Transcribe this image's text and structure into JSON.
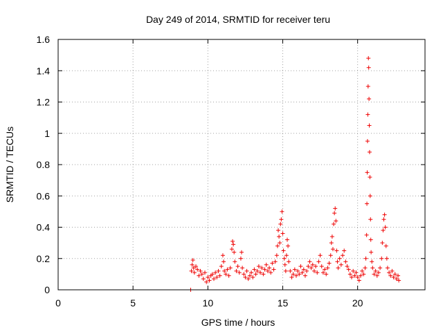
{
  "chart_data": {
    "type": "scatter",
    "title": "Day 249 of 2014, SRMTID for receiver teru",
    "xlabel": "GPS time / hours",
    "ylabel": "SRMTID / TECUs",
    "xlim": [
      0,
      24.5
    ],
    "ylim": [
      0,
      1.6
    ],
    "xticks": [
      0,
      5,
      10,
      15,
      20
    ],
    "xtick_labels": [
      "0",
      "5",
      "10",
      "15",
      "20"
    ],
    "yticks": [
      0,
      0.2,
      0.4,
      0.6,
      0.8,
      1.0,
      1.2,
      1.4,
      1.6
    ],
    "ytick_labels": [
      "0",
      "0.2",
      "0.4",
      "0.6",
      "0.8",
      "1",
      "1.2",
      "1.4",
      "1.6"
    ],
    "grid": true,
    "marker": "+",
    "marker_color": "#ee0000",
    "series": [
      {
        "name": "SRMTID",
        "points": [
          [
            8.85,
            0.0
          ],
          [
            8.9,
            0.12
          ],
          [
            8.95,
            0.16
          ],
          [
            9.0,
            0.19
          ],
          [
            9.05,
            0.14
          ],
          [
            9.1,
            0.11
          ],
          [
            9.2,
            0.15
          ],
          [
            9.3,
            0.13
          ],
          [
            9.4,
            0.09
          ],
          [
            9.5,
            0.12
          ],
          [
            9.6,
            0.1
          ],
          [
            9.7,
            0.07
          ],
          [
            9.8,
            0.11
          ],
          [
            9.9,
            0.05
          ],
          [
            10.0,
            0.08
          ],
          [
            10.1,
            0.06
          ],
          [
            10.2,
            0.09
          ],
          [
            10.3,
            0.1
          ],
          [
            10.4,
            0.07
          ],
          [
            10.5,
            0.11
          ],
          [
            10.6,
            0.08
          ],
          [
            10.7,
            0.12
          ],
          [
            10.8,
            0.09
          ],
          [
            10.9,
            0.15
          ],
          [
            11.0,
            0.22
          ],
          [
            11.05,
            0.18
          ],
          [
            11.1,
            0.12
          ],
          [
            11.2,
            0.1
          ],
          [
            11.3,
            0.13
          ],
          [
            11.4,
            0.09
          ],
          [
            11.5,
            0.14
          ],
          [
            11.6,
            0.26
          ],
          [
            11.65,
            0.31
          ],
          [
            11.7,
            0.29
          ],
          [
            11.75,
            0.24
          ],
          [
            11.8,
            0.18
          ],
          [
            11.9,
            0.12
          ],
          [
            12.0,
            0.15
          ],
          [
            12.1,
            0.11
          ],
          [
            12.2,
            0.2
          ],
          [
            12.25,
            0.24
          ],
          [
            12.3,
            0.14
          ],
          [
            12.4,
            0.1
          ],
          [
            12.5,
            0.08
          ],
          [
            12.6,
            0.12
          ],
          [
            12.7,
            0.07
          ],
          [
            12.8,
            0.09
          ],
          [
            12.9,
            0.11
          ],
          [
            13.0,
            0.08
          ],
          [
            13.1,
            0.13
          ],
          [
            13.2,
            0.1
          ],
          [
            13.3,
            0.12
          ],
          [
            13.4,
            0.15
          ],
          [
            13.5,
            0.11
          ],
          [
            13.6,
            0.14
          ],
          [
            13.7,
            0.1
          ],
          [
            13.8,
            0.13
          ],
          [
            13.9,
            0.16
          ],
          [
            14.0,
            0.12
          ],
          [
            14.1,
            0.14
          ],
          [
            14.2,
            0.11
          ],
          [
            14.3,
            0.17
          ],
          [
            14.4,
            0.13
          ],
          [
            14.5,
            0.18
          ],
          [
            14.6,
            0.22
          ],
          [
            14.65,
            0.28
          ],
          [
            14.7,
            0.38
          ],
          [
            14.75,
            0.34
          ],
          [
            14.8,
            0.3
          ],
          [
            14.85,
            0.42
          ],
          [
            14.9,
            0.45
          ],
          [
            14.95,
            0.5
          ],
          [
            15.0,
            0.36
          ],
          [
            15.05,
            0.25
          ],
          [
            15.1,
            0.2
          ],
          [
            15.15,
            0.16
          ],
          [
            15.2,
            0.12
          ],
          [
            15.25,
            0.22
          ],
          [
            15.3,
            0.32
          ],
          [
            15.35,
            0.28
          ],
          [
            15.4,
            0.18
          ],
          [
            15.5,
            0.12
          ],
          [
            15.6,
            0.08
          ],
          [
            15.7,
            0.1
          ],
          [
            15.8,
            0.13
          ],
          [
            15.9,
            0.09
          ],
          [
            16.0,
            0.12
          ],
          [
            16.1,
            0.1
          ],
          [
            16.2,
            0.15
          ],
          [
            16.3,
            0.11
          ],
          [
            16.4,
            0.13
          ],
          [
            16.5,
            0.09
          ],
          [
            16.6,
            0.12
          ],
          [
            16.7,
            0.15
          ],
          [
            16.8,
            0.18
          ],
          [
            16.9,
            0.14
          ],
          [
            17.0,
            0.16
          ],
          [
            17.1,
            0.12
          ],
          [
            17.2,
            0.15
          ],
          [
            17.3,
            0.11
          ],
          [
            17.4,
            0.18
          ],
          [
            17.5,
            0.22
          ],
          [
            17.6,
            0.15
          ],
          [
            17.7,
            0.11
          ],
          [
            17.8,
            0.13
          ],
          [
            17.9,
            0.1
          ],
          [
            18.0,
            0.14
          ],
          [
            18.1,
            0.17
          ],
          [
            18.2,
            0.22
          ],
          [
            18.25,
            0.3
          ],
          [
            18.3,
            0.34
          ],
          [
            18.35,
            0.26
          ],
          [
            18.4,
            0.42
          ],
          [
            18.45,
            0.49
          ],
          [
            18.5,
            0.52
          ],
          [
            18.55,
            0.44
          ],
          [
            18.6,
            0.25
          ],
          [
            18.65,
            0.18
          ],
          [
            18.7,
            0.14
          ],
          [
            18.8,
            0.2
          ],
          [
            18.9,
            0.16
          ],
          [
            19.0,
            0.22
          ],
          [
            19.1,
            0.25
          ],
          [
            19.2,
            0.18
          ],
          [
            19.3,
            0.15
          ],
          [
            19.4,
            0.13
          ],
          [
            19.5,
            0.1
          ],
          [
            19.6,
            0.08
          ],
          [
            19.7,
            0.12
          ],
          [
            19.8,
            0.09
          ],
          [
            19.9,
            0.11
          ],
          [
            20.0,
            0.08
          ],
          [
            20.1,
            0.06
          ],
          [
            20.2,
            0.09
          ],
          [
            20.3,
            0.12
          ],
          [
            20.4,
            0.1
          ],
          [
            20.5,
            0.14
          ],
          [
            20.55,
            0.2
          ],
          [
            20.6,
            0.35
          ],
          [
            20.62,
            0.55
          ],
          [
            20.64,
            0.75
          ],
          [
            20.66,
            0.95
          ],
          [
            20.68,
            1.12
          ],
          [
            20.7,
            1.3
          ],
          [
            20.72,
            1.48
          ],
          [
            20.74,
            1.42
          ],
          [
            20.76,
            1.22
          ],
          [
            20.78,
            1.05
          ],
          [
            20.8,
            0.88
          ],
          [
            20.82,
            0.72
          ],
          [
            20.84,
            0.6
          ],
          [
            20.86,
            0.45
          ],
          [
            20.88,
            0.32
          ],
          [
            20.9,
            0.24
          ],
          [
            20.95,
            0.18
          ],
          [
            21.0,
            0.14
          ],
          [
            21.1,
            0.1
          ],
          [
            21.2,
            0.12
          ],
          [
            21.3,
            0.09
          ],
          [
            21.4,
            0.11
          ],
          [
            21.5,
            0.14
          ],
          [
            21.6,
            0.2
          ],
          [
            21.65,
            0.3
          ],
          [
            21.7,
            0.38
          ],
          [
            21.75,
            0.45
          ],
          [
            21.8,
            0.48
          ],
          [
            21.85,
            0.4
          ],
          [
            21.9,
            0.28
          ],
          [
            21.95,
            0.2
          ],
          [
            22.0,
            0.14
          ],
          [
            22.1,
            0.11
          ],
          [
            22.2,
            0.09
          ],
          [
            22.3,
            0.12
          ],
          [
            22.4,
            0.08
          ],
          [
            22.5,
            0.1
          ],
          [
            22.6,
            0.07
          ],
          [
            22.7,
            0.09
          ],
          [
            22.75,
            0.06
          ]
        ]
      }
    ]
  }
}
